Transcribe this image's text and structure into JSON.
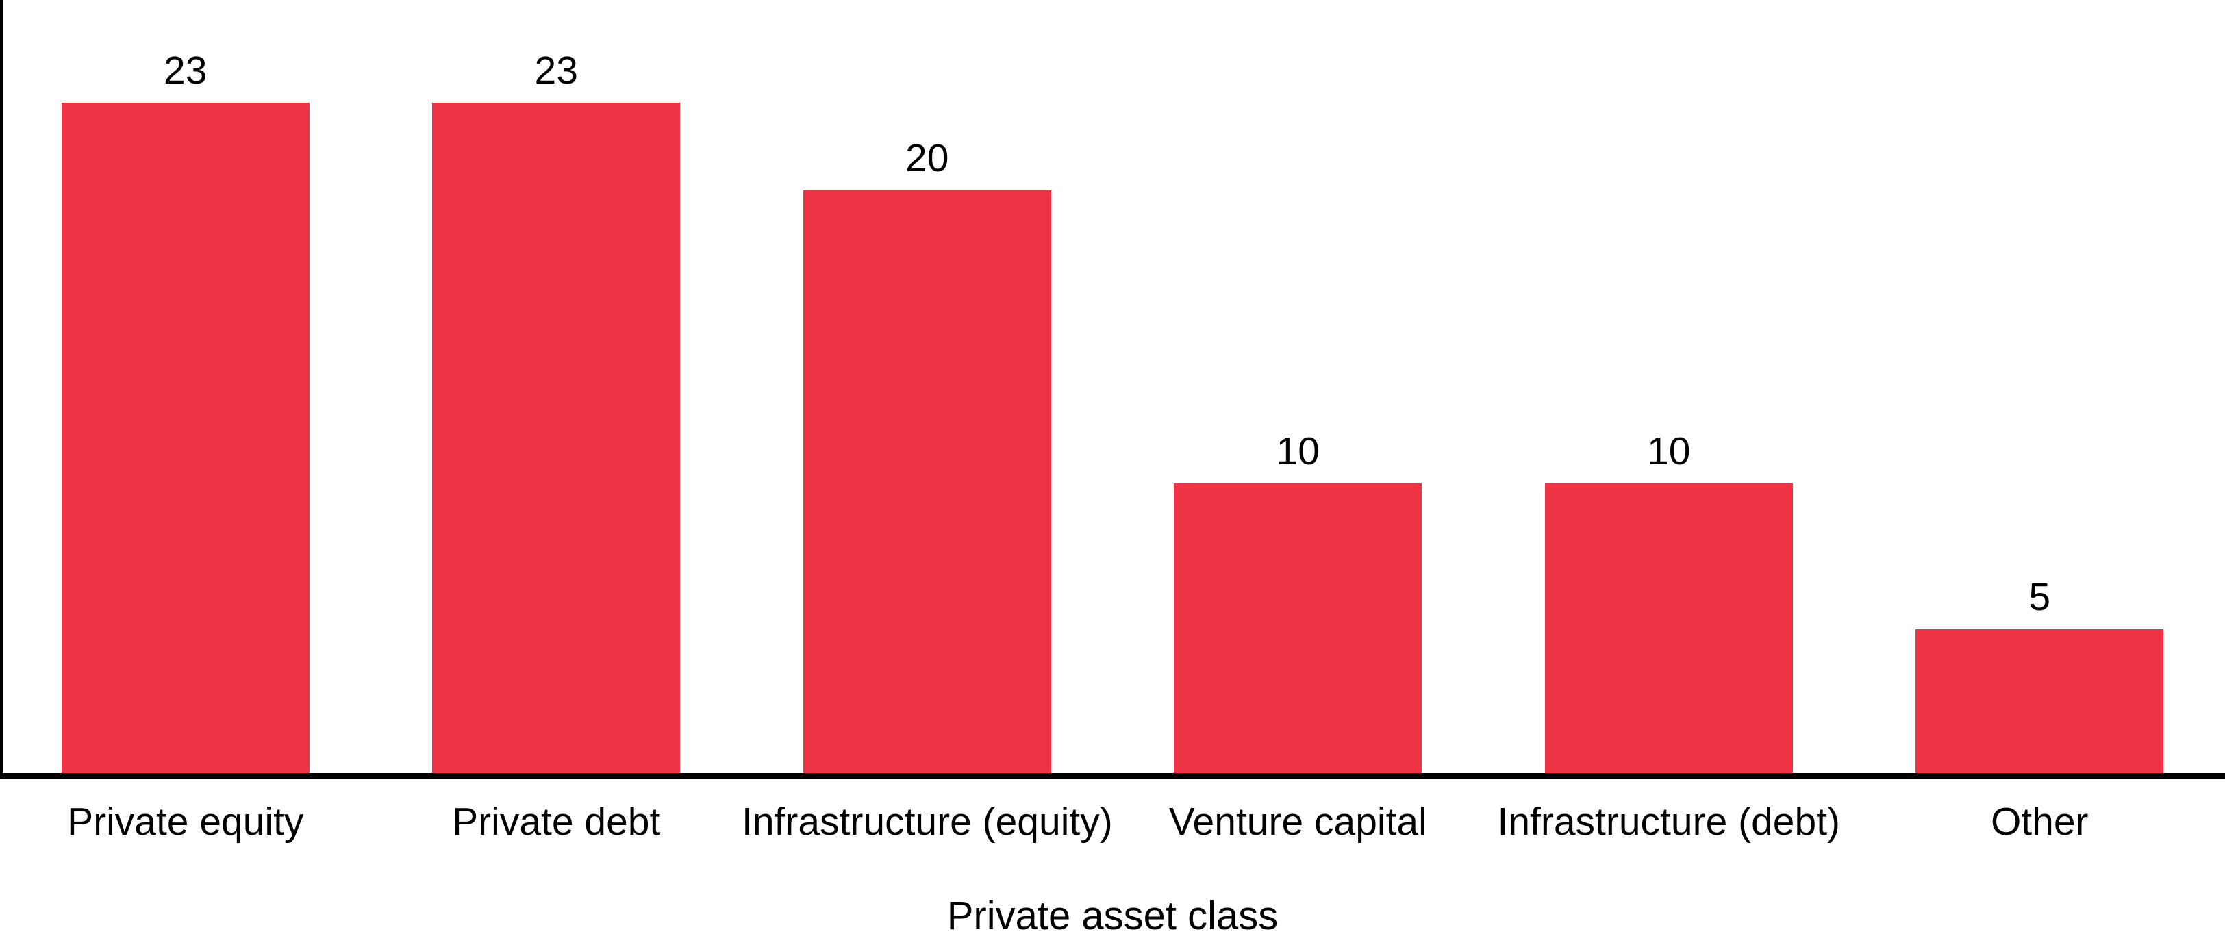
{
  "chart_data": {
    "type": "bar",
    "categories": [
      "Private equity",
      "Private debt",
      "Infrastructure (equity)",
      "Venture capital",
      "Infrastructure (debt)",
      "Other"
    ],
    "values": [
      23,
      23,
      20,
      10,
      10,
      5
    ],
    "value_labels": [
      "23",
      "23",
      "20",
      "10",
      "10",
      "5"
    ],
    "title": "",
    "xlabel": "Private asset class",
    "ylabel": "",
    "ylim": [
      0,
      26.5
    ],
    "grid": false,
    "legend": false,
    "bar_color": "#EE3344",
    "axis_color": "#000000",
    "text_color": "#000000",
    "background_color": "#FFFFFF",
    "spines_visible": [
      "left",
      "bottom"
    ]
  }
}
